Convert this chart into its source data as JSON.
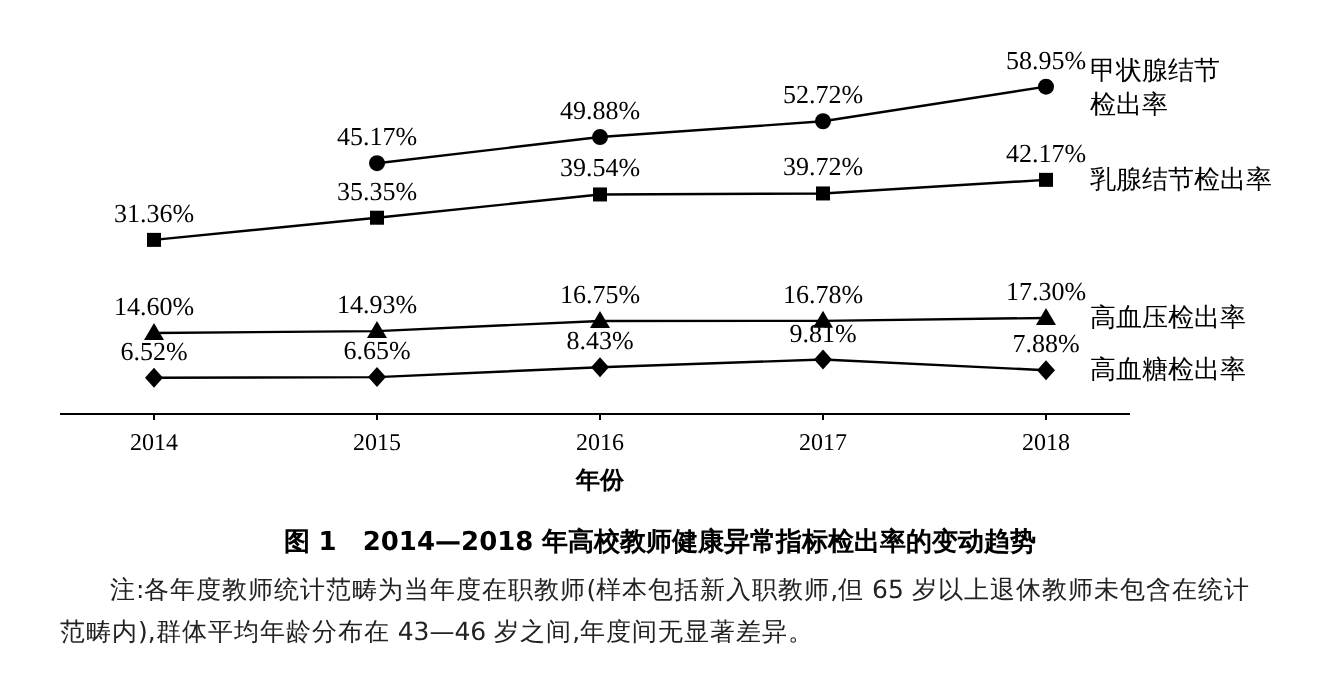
{
  "chart_data": {
    "type": "line",
    "title": "图 1　2014—2018 年高校教师健康异常指标检出率的变动趋势",
    "xlabel": "年份",
    "categories": [
      "2014",
      "2015",
      "2016",
      "2017",
      "2018"
    ],
    "series": [
      {
        "name": "甲状腺结节检出率",
        "color": "#000000",
        "marker": "circle",
        "values": [
          null,
          45.17,
          49.88,
          52.72,
          58.95
        ],
        "value_labels": [
          null,
          "45.17%",
          "49.88%",
          "52.72%",
          "58.95%"
        ]
      },
      {
        "name": "乳腺结节检出率",
        "color": "#000000",
        "marker": "square",
        "values": [
          31.36,
          35.35,
          39.54,
          39.72,
          42.17
        ],
        "value_labels": [
          "31.36%",
          "35.35%",
          "39.54%",
          "39.72%",
          "42.17%"
        ]
      },
      {
        "name": "高血压检出率",
        "color": "#000000",
        "marker": "triangle",
        "values": [
          14.6,
          14.93,
          16.75,
          16.78,
          17.3
        ],
        "value_labels": [
          "14.60%",
          "14.93%",
          "16.75%",
          "16.78%",
          "17.30%"
        ]
      },
      {
        "name": "高血糖检出率",
        "color": "#000000",
        "marker": "diamond",
        "values": [
          6.52,
          6.65,
          8.43,
          9.81,
          7.88
        ],
        "value_labels": [
          "6.52%",
          "6.65%",
          "8.43%",
          "9.81%",
          "7.88%"
        ]
      }
    ],
    "line_style": "solid",
    "annotations": [
      "注:各年度教师统计范畴为当年度在职教师(样本包括新入职教师,但 65 岁以上退休教师未包含在统计范畴内),群体平均年龄分布在 43—46 岁之间,年度间无显著差异。"
    ]
  }
}
